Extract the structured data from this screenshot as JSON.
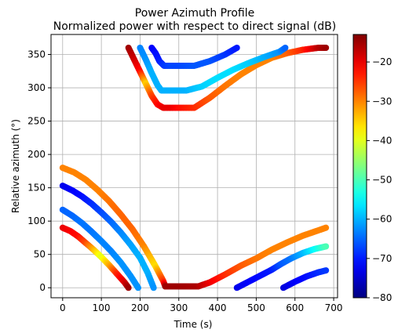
{
  "chart_data": {
    "type": "scatter",
    "title": "Power Azimuth Profile",
    "subtitle": "Normalized power with respect to direct signal (dB)",
    "xlabel": "Time (s)",
    "ylabel": "Relative azimuth (°)",
    "xlim": [
      -30,
      710
    ],
    "ylim": [
      -15,
      380
    ],
    "xticks": [
      0,
      100,
      200,
      300,
      400,
      500,
      600,
      700
    ],
    "yticks": [
      0,
      50,
      100,
      150,
      200,
      250,
      300,
      350
    ],
    "grid": true,
    "colorbar": {
      "label": "",
      "range": [
        -80,
        -13
      ],
      "ticks": [
        -80,
        -70,
        -60,
        -50,
        -40,
        -30,
        -20
      ],
      "tick_labels": [
        "−80",
        "−70",
        "−60",
        "−50",
        "−40",
        "−30",
        "−20"
      ],
      "colormap": "jet"
    },
    "tracks": [
      {
        "points": [
          [
            0,
            90
          ],
          [
            20,
            85
          ],
          [
            40,
            77
          ],
          [
            60,
            67
          ],
          [
            80,
            57
          ],
          [
            100,
            46
          ],
          [
            120,
            34
          ],
          [
            140,
            21
          ],
          [
            160,
            8
          ],
          [
            170,
            0
          ]
        ],
        "power": [
          -20,
          -21,
          -22,
          -26,
          -33,
          -40,
          -33,
          -24,
          -19,
          -15
        ]
      },
      {
        "points": [
          [
            0,
            117
          ],
          [
            25,
            108
          ],
          [
            50,
            97
          ],
          [
            75,
            84
          ],
          [
            100,
            70
          ],
          [
            125,
            55
          ],
          [
            150,
            38
          ],
          [
            175,
            18
          ],
          [
            195,
            0
          ]
        ],
        "power": [
          -65,
          -65,
          -64,
          -64,
          -63,
          -63,
          -62,
          -62,
          -62
        ]
      },
      {
        "points": [
          [
            0,
            153
          ],
          [
            25,
            146
          ],
          [
            50,
            137
          ],
          [
            75,
            126
          ],
          [
            100,
            113
          ],
          [
            125,
            99
          ],
          [
            150,
            83
          ],
          [
            175,
            65
          ],
          [
            200,
            45
          ],
          [
            220,
            22
          ],
          [
            235,
            0
          ]
        ],
        "power": [
          -73,
          -72,
          -71,
          -69,
          -67,
          -65,
          -63,
          -61,
          -60,
          -60,
          -62
        ]
      },
      {
        "points": [
          [
            0,
            180
          ],
          [
            30,
            173
          ],
          [
            60,
            162
          ],
          [
            90,
            147
          ],
          [
            120,
            130
          ],
          [
            150,
            110
          ],
          [
            180,
            88
          ],
          [
            210,
            62
          ],
          [
            240,
            32
          ],
          [
            260,
            10
          ],
          [
            265,
            2
          ]
        ],
        "power": [
          -30,
          -30,
          -30,
          -30,
          -29,
          -28,
          -28,
          -30,
          -36,
          -25,
          -16
        ]
      },
      {
        "points": [
          [
            265,
            2
          ],
          [
            300,
            2
          ],
          [
            350,
            2
          ],
          [
            380,
            8
          ],
          [
            420,
            20
          ],
          [
            460,
            33
          ],
          [
            500,
            44
          ],
          [
            540,
            57
          ],
          [
            580,
            68
          ],
          [
            620,
            78
          ],
          [
            660,
            86
          ],
          [
            680,
            90
          ]
        ],
        "power": [
          -15,
          -15,
          -16,
          -20,
          -24,
          -27,
          -29,
          -30,
          -30,
          -30,
          -30,
          -30
        ]
      },
      {
        "points": [
          [
            450,
            0
          ],
          [
            480,
            9
          ],
          [
            510,
            18
          ],
          [
            540,
            27
          ],
          [
            565,
            36
          ],
          [
            590,
            44
          ],
          [
            620,
            52
          ],
          [
            650,
            58
          ],
          [
            680,
            62
          ]
        ],
        "power": [
          -73,
          -72,
          -71,
          -70,
          -66,
          -64,
          -60,
          -55,
          -50
        ]
      },
      {
        "points": [
          [
            570,
            0
          ],
          [
            600,
            9
          ],
          [
            630,
            17
          ],
          [
            660,
            23
          ],
          [
            680,
            26
          ]
        ],
        "power": [
          -74,
          -72,
          -71,
          -69,
          -68
        ]
      },
      {
        "points": [
          [
            170,
            360
          ],
          [
            185,
            342
          ],
          [
            200,
            324
          ],
          [
            215,
            306
          ],
          [
            230,
            288
          ],
          [
            245,
            275
          ],
          [
            260,
            270
          ],
          [
            280,
            270
          ],
          [
            300,
            270
          ],
          [
            340,
            270
          ],
          [
            380,
            285
          ],
          [
            420,
            303
          ],
          [
            460,
            320
          ],
          [
            500,
            334
          ],
          [
            540,
            345
          ],
          [
            580,
            352
          ],
          [
            620,
            357
          ],
          [
            660,
            360
          ],
          [
            680,
            360
          ]
        ],
        "power": [
          -15,
          -18,
          -22,
          -35,
          -26,
          -22,
          -20,
          -20,
          -22,
          -24,
          -27,
          -29,
          -30,
          -30,
          -30,
          -28,
          -24,
          -17,
          -15
        ]
      },
      {
        "points": [
          [
            200,
            360
          ],
          [
            215,
            342
          ],
          [
            230,
            322
          ],
          [
            245,
            304
          ],
          [
            255,
            296
          ],
          [
            280,
            296
          ],
          [
            320,
            296
          ],
          [
            360,
            302
          ],
          [
            400,
            315
          ],
          [
            440,
            327
          ],
          [
            480,
            337
          ],
          [
            520,
            346
          ],
          [
            560,
            354
          ],
          [
            575,
            360
          ]
        ],
        "power": [
          -63,
          -62,
          -60,
          -60,
          -60,
          -60,
          -60,
          -58,
          -57,
          -57,
          -58,
          -60,
          -62,
          -65
        ]
      },
      {
        "points": [
          [
            230,
            360
          ],
          [
            240,
            352
          ],
          [
            250,
            340
          ],
          [
            262,
            333
          ],
          [
            280,
            333
          ],
          [
            300,
            333
          ],
          [
            340,
            333
          ],
          [
            380,
            340
          ],
          [
            420,
            350
          ],
          [
            450,
            360
          ]
        ],
        "power": [
          -72,
          -71,
          -70,
          -68,
          -67,
          -67,
          -66,
          -66,
          -68,
          -70
        ]
      }
    ]
  }
}
